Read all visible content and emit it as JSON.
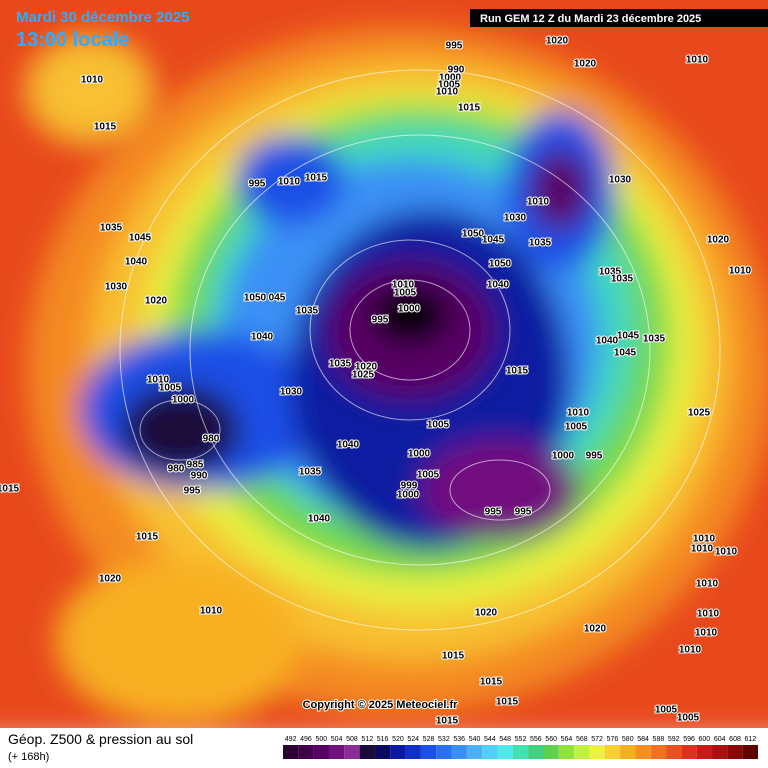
{
  "header": {
    "date": "Mardi 30 décembre 2025",
    "time": "13:00 locale",
    "run": "Run GEM 12 Z du Mardi 23 décembre 2025"
  },
  "copyright": "Copyright © 2025 Meteociel.fr",
  "footer": {
    "title": "Géop. Z500 & pression au sol",
    "lead": "(+ 168h)"
  },
  "scale": {
    "values": [
      492,
      496,
      500,
      504,
      508,
      512,
      516,
      520,
      524,
      528,
      532,
      536,
      540,
      544,
      548,
      552,
      556,
      560,
      564,
      568,
      572,
      576,
      580,
      584,
      588,
      592,
      596,
      600,
      604,
      608,
      612
    ],
    "colors": [
      "#2b0033",
      "#41004a",
      "#590065",
      "#72117e",
      "#8b2d96",
      "#1a0a3a",
      "#0a0a60",
      "#0a1aa0",
      "#1030c8",
      "#1a50e6",
      "#2a70f0",
      "#3a90f5",
      "#4ab0fa",
      "#50d0fa",
      "#50e8e8",
      "#40e0b0",
      "#40d080",
      "#60d050",
      "#90e040",
      "#c0f040",
      "#f0f040",
      "#f8d030",
      "#f8b020",
      "#f89020",
      "#f07020",
      "#e85020",
      "#e03020",
      "#c81818",
      "#a81010",
      "#880808",
      "#600000"
    ]
  },
  "isobar_labels": [
    "995",
    "1020",
    "1020",
    "1010",
    "990",
    "1000",
    "1005",
    "1010",
    "1015",
    "1010",
    "1015",
    "995",
    "1010",
    "1015",
    "1030",
    "1010",
    "1030",
    "1050",
    "1045",
    "1035",
    "1020",
    "1035",
    "1045",
    "1040",
    "1010",
    "1050",
    "1040",
    "1035",
    "1035",
    "1030",
    "1020",
    "1010",
    "1005",
    "1050",
    "045",
    "995",
    "1000",
    "1035",
    "1040",
    "1045",
    "1040",
    "1035",
    "1045",
    "1035",
    "1020",
    "1025",
    "1015",
    "1010",
    "1005",
    "1000",
    "1030",
    "1010",
    "1025",
    "1005",
    "1005",
    "980",
    "1040",
    "1000",
    "1000",
    "995",
    "985",
    "980",
    "990",
    "1005",
    "1035",
    "999",
    "1000",
    "995",
    "1015",
    "995",
    "995",
    "1040",
    "1015",
    "1010",
    "1010",
    "1010",
    "1020",
    "1010",
    "1010",
    "1020",
    "1020",
    "1010",
    "1010",
    "1015",
    "1010",
    "1015",
    "1015",
    "1005",
    "1005",
    "1015"
  ]
}
